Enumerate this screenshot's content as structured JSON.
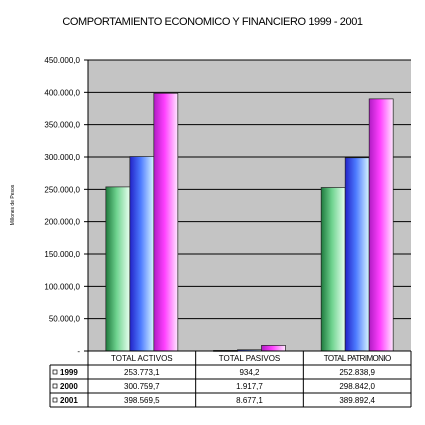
{
  "chart_data": {
    "type": "bar",
    "title": "COMPORTAMIENTO ECONOMICO Y FINANCIERO 1999 - 2001",
    "ylabel": "Millones de Pesos",
    "xlabel": "",
    "ylim": [
      0,
      450000
    ],
    "yticks": [
      "-",
      "50.000,0",
      "100.000,0",
      "150.000,0",
      "200.000,0",
      "250.000,0",
      "300.000,0",
      "350.000,0",
      "400.000,0",
      "450.000,0"
    ],
    "categories": [
      "TOTAL ACTIVOS",
      "TOTAL PASIVOS",
      "TOTAL PATRIMONIO"
    ],
    "grid": true,
    "legend": "table-below",
    "colors": [
      "#3cb371",
      "#3a5cf0",
      "#e040e6"
    ],
    "series": [
      {
        "name": "1999",
        "values": [
          253773.1,
          934.2,
          252838.9
        ],
        "labels": [
          "253.773,1",
          "934,2",
          "252.838,9"
        ]
      },
      {
        "name": "2000",
        "values": [
          300759.7,
          1917.7,
          298842.0
        ],
        "labels": [
          "300.759,7",
          "1.917,7",
          "298.842,0"
        ]
      },
      {
        "name": "2001",
        "values": [
          398569.5,
          8677.1,
          389892.4
        ],
        "labels": [
          "398.569,5",
          "8.677,1",
          "389.892,4"
        ]
      }
    ]
  }
}
